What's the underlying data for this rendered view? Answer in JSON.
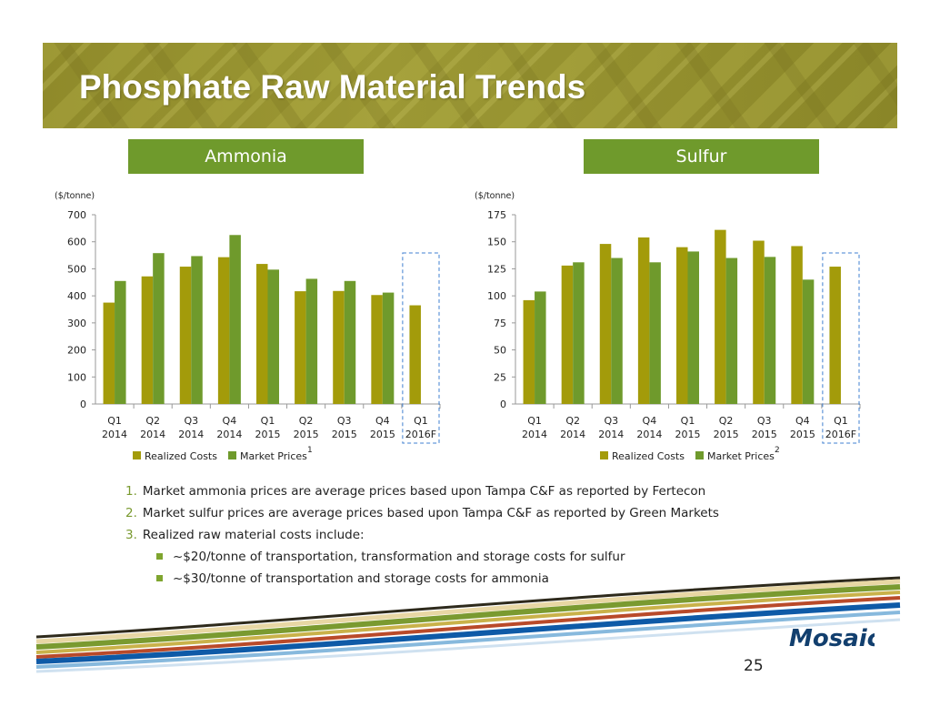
{
  "slide": {
    "title": "Phosphate Raw Material Trends",
    "page_number": "25",
    "logo_text": "Mosaic"
  },
  "labels": {
    "ammonia": "Ammonia",
    "sulfur": "Sulfur"
  },
  "notes": [
    {
      "num": "1.",
      "text": "Market ammonia prices are average prices based upon Tampa C&F as reported by Fertecon"
    },
    {
      "num": "2.",
      "text": "Market sulfur prices are average prices based upon Tampa C&F as reported by Green Markets"
    },
    {
      "num": "3.",
      "text": "Realized raw material costs include:"
    }
  ],
  "sub_notes": [
    "~$20/tonne of transportation, transformation and storage costs for sulfur",
    "~$30/tonne of transportation and storage costs for ammonia"
  ],
  "colors": {
    "realized": "#a39b0a",
    "market": "#6f9a2c",
    "highlight_border": "#3f7fd0",
    "label_box": "#6f9a2c"
  },
  "chart_data": [
    {
      "type": "bar",
      "ylabel": "($/tonne)",
      "ylim": [
        0,
        700
      ],
      "yticks": [
        0,
        100,
        200,
        300,
        400,
        500,
        600,
        700
      ],
      "categories": [
        [
          "Q1",
          "2014"
        ],
        [
          "Q2",
          "2014"
        ],
        [
          "Q3",
          "2014"
        ],
        [
          "Q4",
          "2014"
        ],
        [
          "Q1",
          "2015"
        ],
        [
          "Q2",
          "2015"
        ],
        [
          "Q3",
          "2015"
        ],
        [
          "Q4",
          "2015"
        ],
        [
          "Q1",
          "2016F"
        ]
      ],
      "series": [
        {
          "name": "Realized Costs",
          "values": [
            375,
            472,
            508,
            543,
            518,
            417,
            418,
            403,
            365
          ]
        },
        {
          "name": "Market Prices",
          "values": [
            455,
            558,
            547,
            625,
            497,
            463,
            455,
            412,
            null
          ]
        }
      ],
      "legend_footnote": "1",
      "legend_position": "bottom",
      "grid": false,
      "highlighted_category": "Q1 2016F"
    },
    {
      "type": "bar",
      "ylabel": "($/tonne)",
      "ylim": [
        0,
        175
      ],
      "yticks": [
        0,
        25,
        50,
        75,
        100,
        125,
        150,
        175
      ],
      "categories": [
        [
          "Q1",
          "2014"
        ],
        [
          "Q2",
          "2014"
        ],
        [
          "Q3",
          "2014"
        ],
        [
          "Q4",
          "2014"
        ],
        [
          "Q1",
          "2015"
        ],
        [
          "Q2",
          "2015"
        ],
        [
          "Q3",
          "2015"
        ],
        [
          "Q4",
          "2015"
        ],
        [
          "Q1",
          "2016F"
        ]
      ],
      "series": [
        {
          "name": "Realized Costs",
          "values": [
            96,
            128,
            148,
            154,
            145,
            161,
            151,
            146,
            127
          ]
        },
        {
          "name": "Market Prices",
          "values": [
            104,
            131,
            135,
            131,
            141,
            135,
            136,
            115,
            null
          ]
        }
      ],
      "legend_footnote": "2",
      "legend_position": "bottom",
      "grid": false,
      "highlighted_category": "Q1 2016F"
    }
  ]
}
